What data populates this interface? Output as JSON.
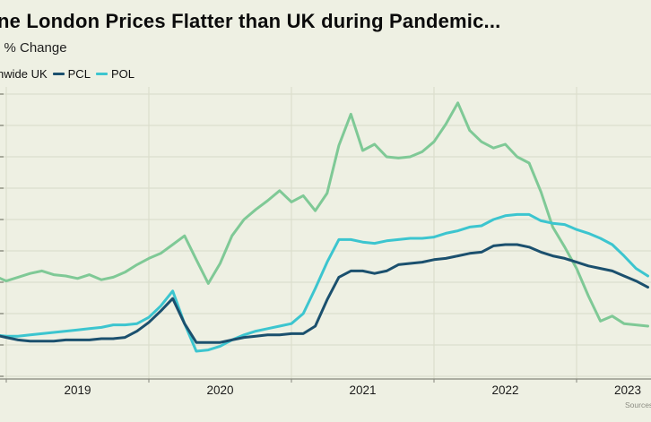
{
  "header": {
    "title": "ne London Prices Flatter than UK during Pandemic...",
    "subtitle": "l % Change"
  },
  "legend": {
    "items": [
      {
        "label": "nwide UK",
        "series": "uk",
        "color": "#7fc996",
        "marker_visible": false
      },
      {
        "label": "PCL",
        "series": "pcl",
        "color": "#1b506e",
        "marker_visible": true
      },
      {
        "label": "POL",
        "series": "pol",
        "color": "#3cc5cf",
        "marker_visible": true
      }
    ]
  },
  "source_note": "Sources",
  "chart_data": {
    "type": "line",
    "title": "ne London Prices Flatter than UK during Pandemic...",
    "subtitle_ylabel": "l % Change",
    "x_unit": "decimal_year",
    "grid": true,
    "legend_position": "top-left",
    "xlim": [
      2018.956,
      2023.522
    ],
    "ylim": [
      -7.7,
      15.7
    ],
    "y_grid_step": 2.5,
    "x_ticks": [
      {
        "value": 2019,
        "label": "2019"
      },
      {
        "value": 2020,
        "label": "2020"
      },
      {
        "value": 2021,
        "label": "2021"
      },
      {
        "value": 2022,
        "label": "2022"
      },
      {
        "value": 2023,
        "label": "2023"
      }
    ],
    "draw_order": [
      "uk",
      "pol",
      "pcl"
    ],
    "x": [
      2018.917,
      2019,
      2019.083,
      2019.167,
      2019.25,
      2019.333,
      2019.417,
      2019.5,
      2019.583,
      2019.667,
      2019.75,
      2019.833,
      2019.917,
      2020,
      2020.083,
      2020.167,
      2020.25,
      2020.333,
      2020.417,
      2020.5,
      2020.583,
      2020.667,
      2020.75,
      2020.833,
      2020.917,
      2021,
      2021.083,
      2021.167,
      2021.25,
      2021.333,
      2021.417,
      2021.5,
      2021.583,
      2021.667,
      2021.75,
      2021.833,
      2021.917,
      2022,
      2022.083,
      2022.167,
      2022.25,
      2022.333,
      2022.417,
      2022.5,
      2022.583,
      2022.667,
      2022.75,
      2022.833,
      2022.917,
      2023,
      2023.083,
      2023.167,
      2023.25,
      2023.333,
      2023.417,
      2023.5
    ],
    "series": [
      {
        "id": "uk",
        "name": "nwide UK",
        "color": "#7fc996",
        "values": [
          0.5,
          0.1,
          0.4,
          0.7,
          0.9,
          0.6,
          0.5,
          0.3,
          0.6,
          0.2,
          0.4,
          0.8,
          1.4,
          1.9,
          2.3,
          3.0,
          3.7,
          1.8,
          -0.1,
          1.5,
          3.7,
          5.0,
          5.8,
          6.5,
          7.3,
          6.4,
          6.9,
          5.7,
          7.1,
          10.9,
          13.4,
          10.5,
          11.0,
          10.0,
          9.9,
          10.0,
          10.4,
          11.2,
          12.6,
          14.3,
          12.1,
          11.2,
          10.7,
          11.0,
          10.0,
          9.5,
          7.2,
          4.4,
          2.8,
          1.1,
          -1.1,
          -3.1,
          -2.7,
          -3.3,
          -3.4,
          -3.5
        ]
      },
      {
        "id": "pcl",
        "name": "PCL",
        "color": "#1b506e",
        "values": [
          -4.2,
          -4.4,
          -4.6,
          -4.7,
          -4.7,
          -4.7,
          -4.6,
          -4.6,
          -4.6,
          -4.5,
          -4.5,
          -4.4,
          -3.9,
          -3.2,
          -2.3,
          -1.3,
          -3.3,
          -4.8,
          -4.8,
          -4.8,
          -4.6,
          -4.4,
          -4.3,
          -4.2,
          -4.2,
          -4.1,
          -4.1,
          -3.5,
          -1.4,
          0.4,
          0.9,
          0.9,
          0.7,
          0.9,
          1.4,
          1.5,
          1.6,
          1.8,
          1.9,
          2.1,
          2.3,
          2.4,
          2.9,
          3.0,
          3.0,
          2.8,
          2.4,
          2.1,
          1.9,
          1.6,
          1.3,
          1.1,
          0.9,
          0.5,
          0.1,
          -0.4
        ]
      },
      {
        "id": "pol",
        "name": "POL",
        "color": "#3cc5cf",
        "values": [
          -4.2,
          -4.3,
          -4.3,
          -4.2,
          -4.1,
          -4.0,
          -3.9,
          -3.8,
          -3.7,
          -3.6,
          -3.4,
          -3.4,
          -3.3,
          -2.8,
          -1.9,
          -0.7,
          -3.3,
          -5.5,
          -5.4,
          -5.1,
          -4.6,
          -4.2,
          -3.9,
          -3.7,
          -3.5,
          -3.3,
          -2.5,
          -0.5,
          1.6,
          3.4,
          3.4,
          3.2,
          3.1,
          3.3,
          3.4,
          3.5,
          3.5,
          3.6,
          3.9,
          4.1,
          4.4,
          4.5,
          5.0,
          5.3,
          5.4,
          5.4,
          4.9,
          4.7,
          4.6,
          4.2,
          3.9,
          3.5,
          3.0,
          2.1,
          1.1,
          0.5
        ]
      }
    ]
  }
}
